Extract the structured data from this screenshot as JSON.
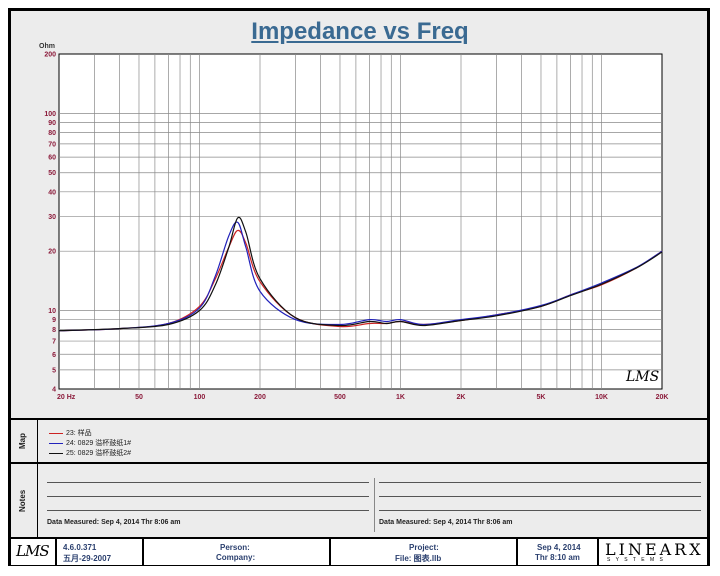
{
  "chart_data": {
    "type": "line",
    "title": "Impedance vs Freq",
    "ylabel": "Ohm",
    "xscale": "log",
    "yscale": "log",
    "xlim": [
      20,
      20000
    ],
    "ylim": [
      4,
      200
    ],
    "x_tick_labels": [
      {
        "value": 20,
        "label": "20 Hz"
      },
      {
        "value": 50,
        "label": "50"
      },
      {
        "value": 100,
        "label": "100"
      },
      {
        "value": 200,
        "label": "200"
      },
      {
        "value": 500,
        "label": "500"
      },
      {
        "value": 1000,
        "label": "1K"
      },
      {
        "value": 2000,
        "label": "2K"
      },
      {
        "value": 5000,
        "label": "5K"
      },
      {
        "value": 10000,
        "label": "10K"
      },
      {
        "value": 20000,
        "label": "20K"
      }
    ],
    "y_tick_labels": [
      200,
      100,
      90,
      80,
      70,
      60,
      50,
      40,
      30,
      20,
      10,
      9,
      8,
      7,
      6,
      5,
      4
    ],
    "grid": true,
    "x": [
      20,
      40,
      70,
      100,
      120,
      140,
      155,
      170,
      200,
      300,
      500,
      700,
      850,
      1000,
      1300,
      2000,
      3000,
      5000,
      7000,
      10000,
      15000,
      20000
    ],
    "series": [
      {
        "name": "23: 样品",
        "color": "#cc2222",
        "values": [
          7.9,
          8.1,
          8.6,
          10.5,
          14.5,
          21,
          25.5,
          22,
          14,
          9.2,
          8.3,
          8.6,
          8.6,
          8.8,
          8.5,
          8.9,
          9.5,
          10.5,
          12,
          13.5,
          16.5,
          20
        ]
      },
      {
        "name": "24: 0829 溢杯鼓纸1#",
        "color": "#2222bb",
        "values": [
          7.9,
          8.1,
          8.6,
          10.3,
          15,
          24,
          28,
          21,
          12.5,
          9,
          8.5,
          9,
          8.8,
          9,
          8.5,
          9,
          9.5,
          10.6,
          12,
          13.8,
          16.6,
          20
        ]
      },
      {
        "name": "25: 0829 溢杯鼓纸2#",
        "color": "#111111",
        "values": [
          7.9,
          8.1,
          8.5,
          10,
          13.5,
          21,
          29.5,
          25,
          14.5,
          9.2,
          8.4,
          8.8,
          8.6,
          8.8,
          8.4,
          8.9,
          9.4,
          10.5,
          11.9,
          13.6,
          16.5,
          19.8
        ]
      }
    ]
  },
  "notes": {
    "label_map": "Map",
    "label_notes": "Notes",
    "data_measured_left": "Data Measured:  Sep  4, 2014  Thr  8:06 am",
    "data_measured_right": "Data Measured:  Sep  4, 2014  Thr  8:06 am"
  },
  "footer": {
    "lms_logo": "LMS",
    "version": "4.6.0.371",
    "version_date": "五月-29-2007",
    "person_label": "Person:",
    "company_label": "Company:",
    "project_label": "Project:",
    "file_label": "File: 图表.llb",
    "date": "Sep  4, 2014",
    "time": "Thr  8:10 am",
    "brand": "LINEARX",
    "brand_sub": "S Y S T E M S"
  },
  "plot_watermark": "LMS"
}
